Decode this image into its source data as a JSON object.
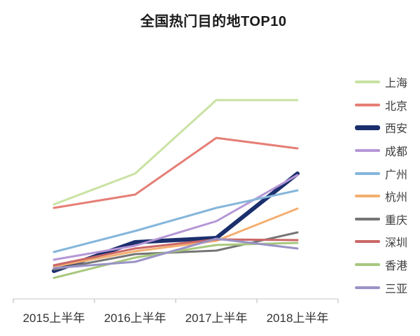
{
  "page": {
    "background": "#ffffff"
  },
  "chart_data": {
    "type": "line",
    "title": "全国热门目的地TOP10",
    "categories": [
      "2015上半年",
      "2016上半年",
      "2017上半年",
      "2018上半年"
    ],
    "series": [
      {
        "id": "shanghai",
        "name": "上海",
        "color": "#c9e2a3",
        "emphasis": false,
        "values": [
          135,
          179,
          284,
          284
        ]
      },
      {
        "id": "beijing",
        "name": "北京",
        "color": "#e57e76",
        "emphasis": false,
        "values": [
          130,
          149,
          230,
          215
        ]
      },
      {
        "id": "xian",
        "name": "西安",
        "color": "#1b2f6d",
        "emphasis": true,
        "values": [
          40,
          81,
          87,
          179
        ]
      },
      {
        "id": "chengdu",
        "name": "成都",
        "color": "#b596d6",
        "emphasis": false,
        "values": [
          56,
          76,
          111,
          177
        ]
      },
      {
        "id": "guangzhou",
        "name": "广州",
        "color": "#84b6db",
        "emphasis": false,
        "values": [
          67,
          97,
          130,
          155
        ]
      },
      {
        "id": "hangzhou",
        "name": "杭州",
        "color": "#f3ae6f",
        "emphasis": false,
        "values": [
          46,
          68,
          83,
          129
        ]
      },
      {
        "id": "chongqing",
        "name": "重庆",
        "color": "#757575",
        "emphasis": false,
        "values": [
          42,
          64,
          69,
          95
        ]
      },
      {
        "id": "shenzhen",
        "name": "深圳",
        "color": "#ca6767",
        "emphasis": false,
        "values": [
          48,
          72,
          85,
          84
        ]
      },
      {
        "id": "hongkong",
        "name": "香港",
        "color": "#a7c87d",
        "emphasis": false,
        "values": [
          30,
          59,
          77,
          80
        ]
      },
      {
        "id": "sanya",
        "name": "三亚",
        "color": "#9a93c6",
        "emphasis": false,
        "values": [
          44,
          53,
          86,
          72
        ]
      }
    ],
    "ylim": [
      0,
      310
    ],
    "y_axis_visible": false,
    "grid": false,
    "legend_position": "right",
    "axis_color": "#c8c8c8",
    "tick_color": "#b5b5b5"
  }
}
